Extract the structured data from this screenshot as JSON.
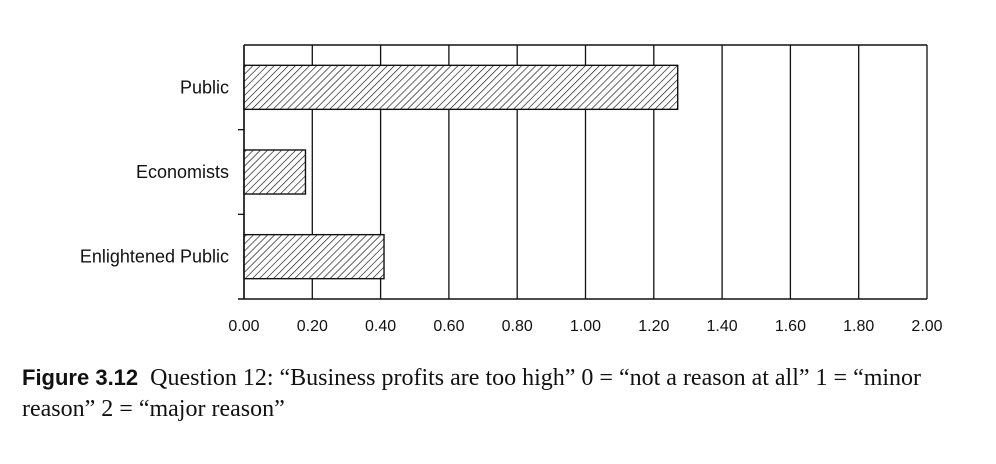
{
  "chart_data": {
    "type": "bar",
    "orientation": "horizontal",
    "categories": [
      "Public",
      "Economists",
      "Enlightened Public"
    ],
    "values": [
      1.27,
      0.18,
      0.41
    ],
    "xlim": [
      0,
      2.0
    ],
    "xticks": [
      "0.00",
      "0.20",
      "0.40",
      "0.60",
      "0.80",
      "1.00",
      "1.20",
      "1.40",
      "1.60",
      "1.80",
      "2.00"
    ],
    "grid": true,
    "bar_fill": "diagonal hatch",
    "colors": {
      "ink": "#111111",
      "background": "#ffffff"
    }
  },
  "caption": {
    "label": "Figure 3.12",
    "text": "Question 12: “Business profits are too high” 0 = “not a reason at all” 1 = “minor reason” 2 = “major reason”"
  }
}
